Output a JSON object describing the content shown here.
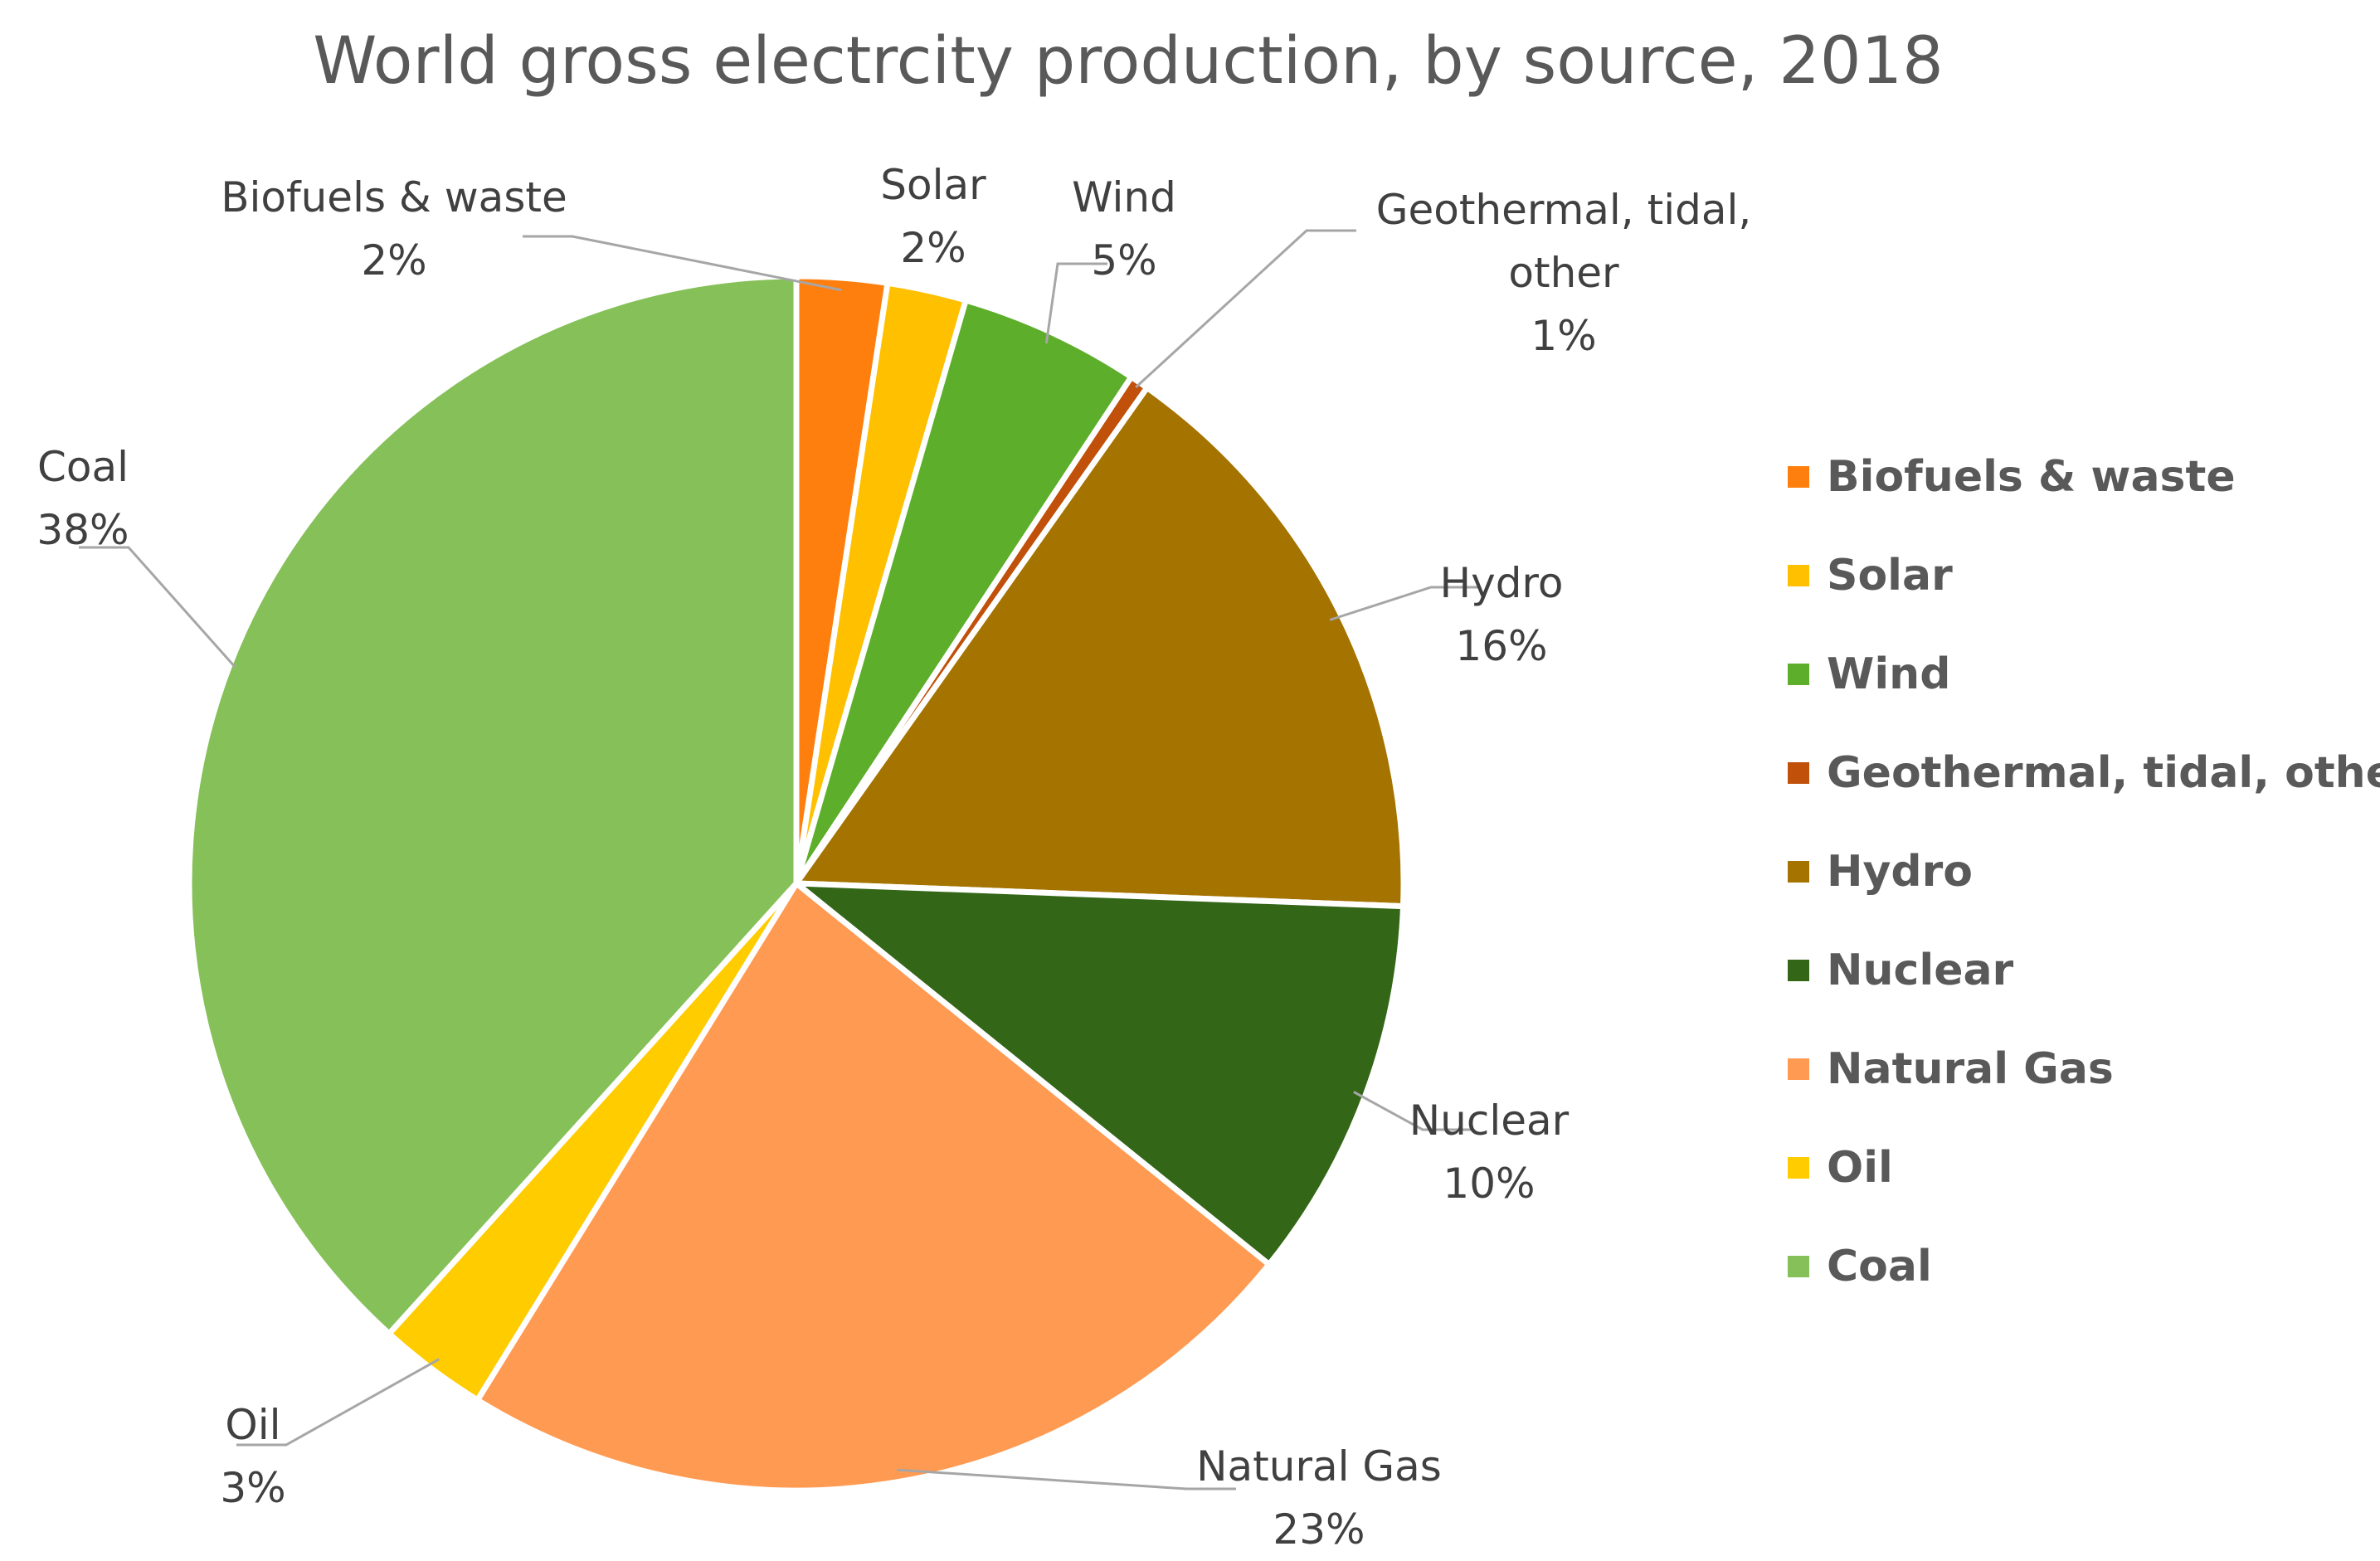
{
  "chart_data": {
    "type": "pie",
    "title": "World gross electrcity production, by source, 2018",
    "legend_position": "right",
    "start_angle_deg": 0,
    "direction": "clockwise",
    "slices": [
      {
        "name": "Biofuels & waste",
        "percent": 2.4,
        "label_name_lines": [
          "Biofuels & waste"
        ],
        "label_value": "2%",
        "color": "#FF7F0E"
      },
      {
        "name": "Solar",
        "percent": 2.1,
        "label_name_lines": [
          "Solar"
        ],
        "label_value": "2%",
        "color": "#FFC000"
      },
      {
        "name": "Wind",
        "percent": 4.8,
        "label_name_lines": [
          "Wind"
        ],
        "label_value": "5%",
        "color": "#5DAE2B"
      },
      {
        "name": "Geothermal, tidal, other",
        "percent": 0.5,
        "label_name_lines": [
          "Geothermal, tidal,",
          "other"
        ],
        "label_value": "1%",
        "color": "#C0500A"
      },
      {
        "name": "Hydro",
        "percent": 15.8,
        "label_name_lines": [
          "Hydro"
        ],
        "label_value": "16%",
        "color": "#A47300"
      },
      {
        "name": "Nuclear",
        "percent": 10.2,
        "label_name_lines": [
          "Nuclear"
        ],
        "label_value": "10%",
        "color": "#336616"
      },
      {
        "name": "Natural Gas",
        "percent": 23.0,
        "label_name_lines": [
          "Natural Gas"
        ],
        "label_value": "23%",
        "color": "#FF9A52"
      },
      {
        "name": "Oil",
        "percent": 2.9,
        "label_name_lines": [
          "Oil"
        ],
        "label_value": "3%",
        "color": "#FFCC00"
      },
      {
        "name": "Coal",
        "percent": 38.3,
        "label_name_lines": [
          "Coal"
        ],
        "label_value": "38%",
        "color": "#86C059"
      }
    ]
  }
}
